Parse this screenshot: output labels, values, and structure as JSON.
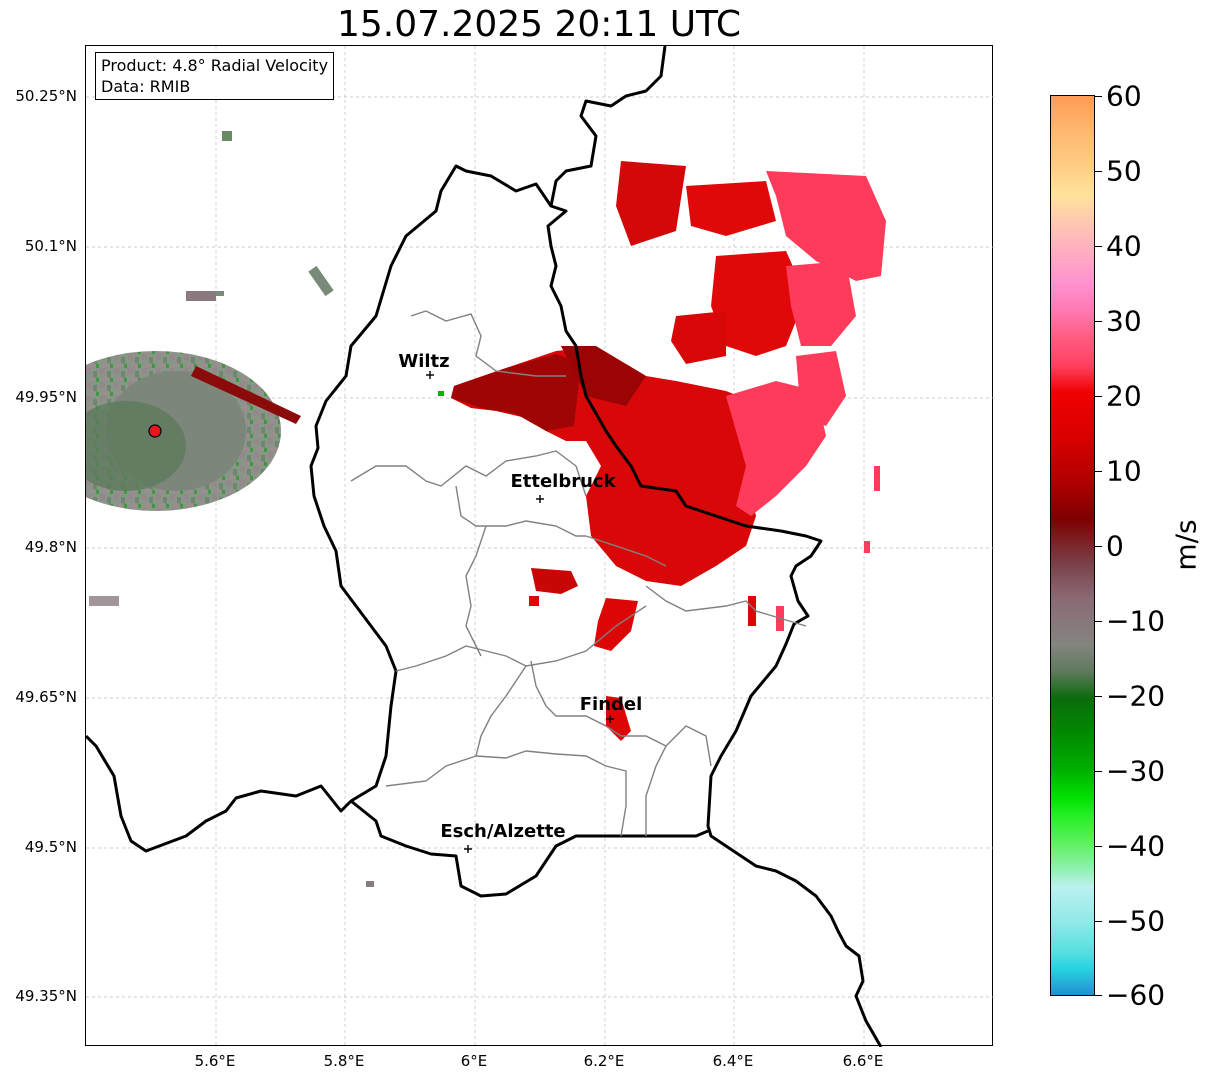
{
  "title": "15.07.2025 20:11 UTC",
  "info_box": {
    "product": "Product: 4.8° Radial Velocity",
    "data_source": "Data: RMIB"
  },
  "axes": {
    "lat_ticks": [
      "50.25°N",
      "50.1°N",
      "49.95°N",
      "49.8°N",
      "49.65°N",
      "49.5°N",
      "49.35°N"
    ],
    "lon_ticks": [
      "5.6°E",
      "5.8°E",
      "6°E",
      "6.2°E",
      "6.4°E",
      "6.6°E"
    ],
    "gridlines": true
  },
  "cities": [
    {
      "name": "Wiltz"
    },
    {
      "name": "Ettelbruck"
    },
    {
      "name": "Findel"
    },
    {
      "name": "Esch/Alzette"
    }
  ],
  "radar_site": {
    "marker_color": "#e8141e"
  },
  "colorbar": {
    "unit": "m/s",
    "ticks": [
      "60",
      "50",
      "40",
      "30",
      "20",
      "10",
      "0",
      "−10",
      "−20",
      "−30",
      "−40",
      "−50",
      "−60"
    ],
    "range": [
      -60,
      60
    ]
  },
  "colors": {
    "border": "#000000",
    "admin_border": "#808080",
    "gridline": "#bdbdbd",
    "velocity_red": "#dd0000",
    "velocity_pink": "#ff3b5c",
    "velocity_green": "#00b400"
  }
}
